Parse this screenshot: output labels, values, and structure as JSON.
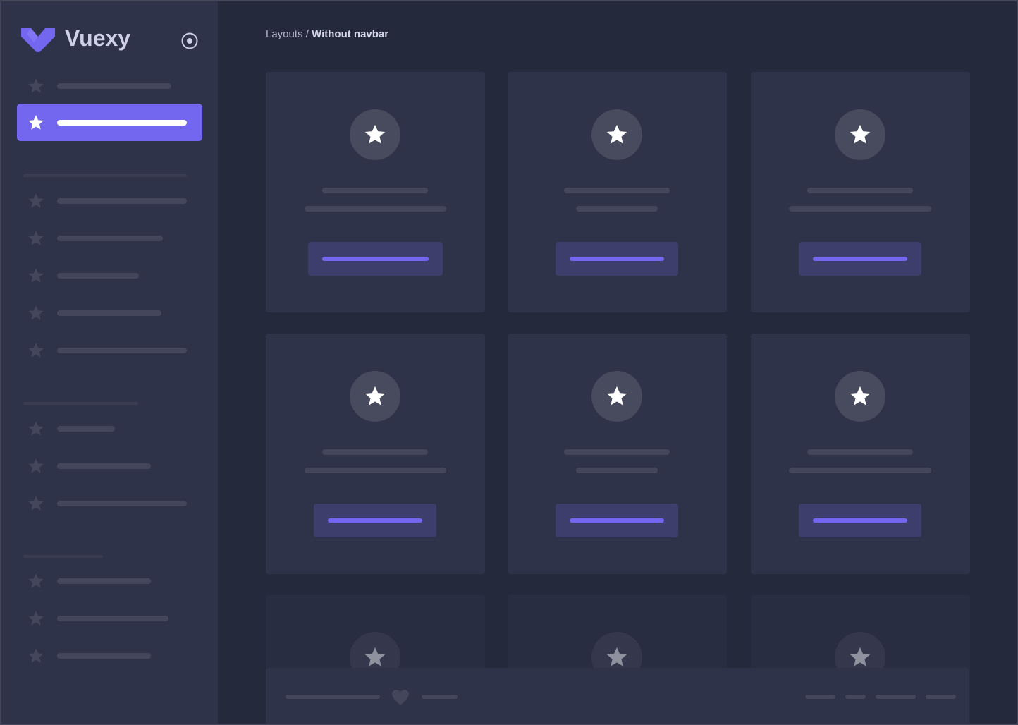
{
  "app": {
    "name": "Vuexy",
    "accent": "#7367f0"
  },
  "breadcrumb": {
    "parent": "Layouts",
    "separator": " / ",
    "current": "Without navbar"
  },
  "icons": {
    "logo": "vuexy-logo",
    "collapse": "radio-circle-icon",
    "nav": "star-icon",
    "card": "star-icon",
    "footer": "heart-icon"
  },
  "sidebar": {
    "active_index": 1
  }
}
